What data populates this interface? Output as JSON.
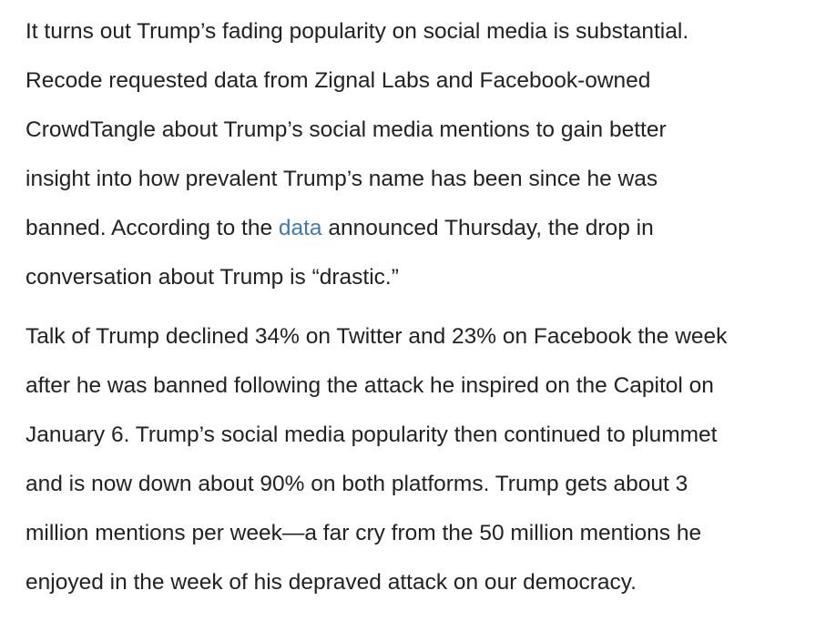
{
  "article": {
    "paragraph1": {
      "line1": "It turns out Trump’s fading popularity on social media is substantial.",
      "line2": "Recode requested data from Zignal Labs and Facebook-owned",
      "line3": "CrowdTangle about Trump’s social media mentions to gain better",
      "line4": "insight into how prevalent Trump’s name has been since he was",
      "line5_before_link": "banned. According to the ",
      "line5_link": "data",
      "line5_after_link": " announced Thursday, the drop in",
      "line6": "conversation about Trump is “drastic.”"
    },
    "paragraph2": {
      "line1": "Talk of Trump declined 34% on Twitter and 23% on Facebook the week",
      "line2": "after he was banned following the attack he inspired on the Capitol on",
      "line3": "January 6. Trump’s social media popularity then continued to plummet",
      "line4": "and is now down about 90% on both platforms. Trump gets about 3",
      "line5": "million mentions per week—a far cry from the 50 million mentions he",
      "line6": "enjoyed in the week of his depraved attack on our democracy."
    },
    "colors": {
      "text": "#222222",
      "link": "#3d7ab8",
      "background": "#ffffff"
    }
  }
}
